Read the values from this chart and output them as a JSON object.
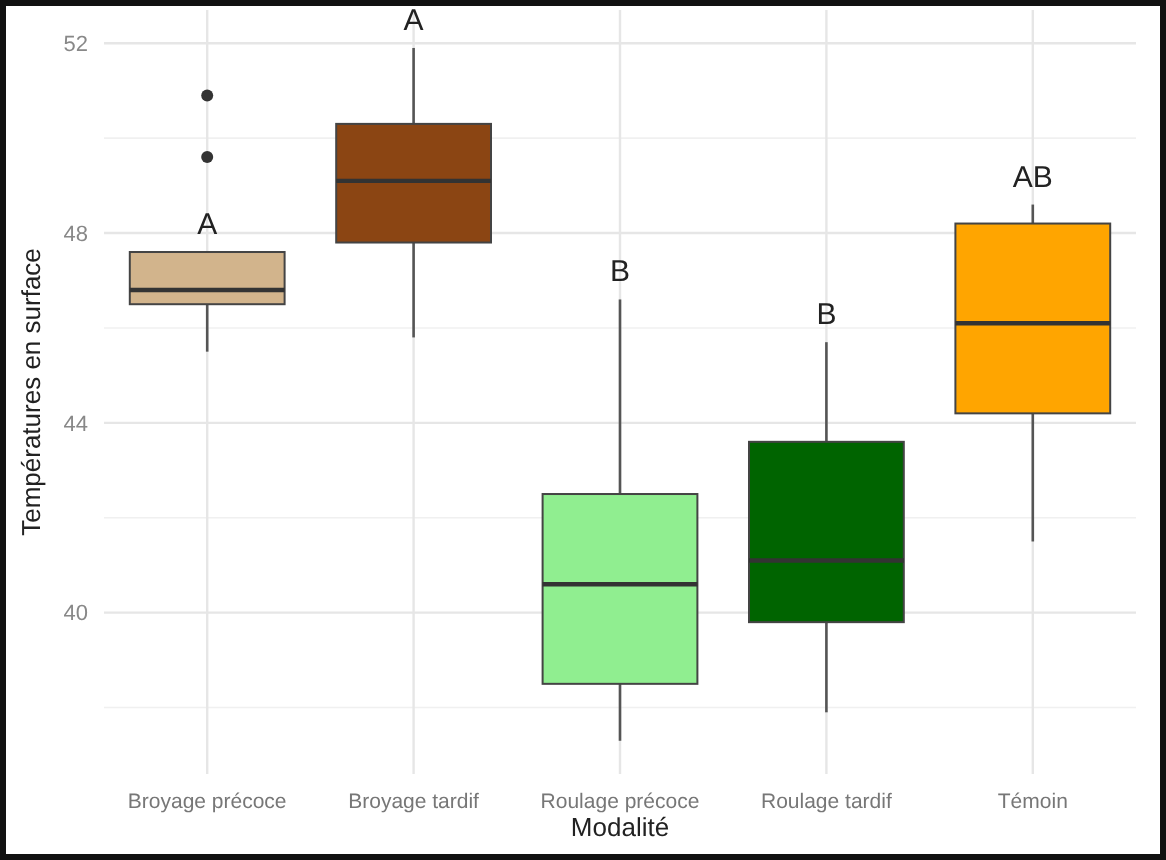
{
  "chart_data": {
    "type": "box",
    "xlabel": "Modalité",
    "ylabel": "Températures en surface",
    "categories": [
      "Broyage précoce",
      "Broyage tardif",
      "Roulage précoce",
      "Roulage tardif",
      "Témoin"
    ],
    "colors": [
      "#d2b48c",
      "#8b4513",
      "#90ee90",
      "#006400",
      "#ffa500"
    ],
    "boxes": [
      {
        "low": 45.5,
        "q1": 46.5,
        "median": 46.8,
        "q3": 47.6,
        "high": 47.6,
        "outliers": [
          50.9,
          49.6
        ]
      },
      {
        "low": 45.8,
        "q1": 47.8,
        "median": 49.1,
        "q3": 50.3,
        "high": 51.9
      },
      {
        "low": 37.3,
        "q1": 38.5,
        "median": 40.6,
        "q3": 42.5,
        "high": 46.6
      },
      {
        "low": 37.9,
        "q1": 39.8,
        "median": 41.1,
        "q3": 43.6,
        "high": 45.7
      },
      {
        "low": 41.5,
        "q1": 44.2,
        "median": 46.1,
        "q3": 48.2,
        "high": 48.6
      }
    ],
    "annotations": [
      "A",
      "A",
      "B",
      "B",
      "AB"
    ],
    "ylim": [
      36.6,
      52.7
    ],
    "yticks": [
      40,
      44,
      48,
      52
    ],
    "grid": true
  }
}
